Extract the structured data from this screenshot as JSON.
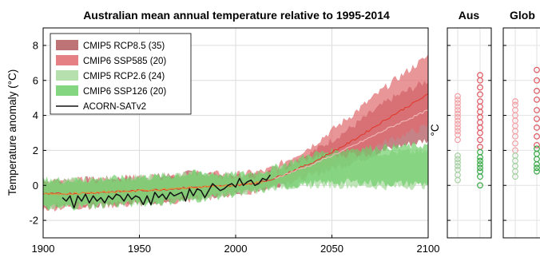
{
  "chart_data": [
    {
      "type": "area",
      "title": "Australian mean annual temperature relative to 1995-2014",
      "xlabel": "",
      "ylabel": "Temperature anomaly (°C)",
      "xlim": [
        1900,
        2100
      ],
      "ylim": [
        -3,
        9
      ],
      "xticks": [
        1900,
        1950,
        2000,
        2050,
        2100
      ],
      "yticks": [
        -2,
        0,
        2,
        4,
        6,
        8
      ],
      "grid": true,
      "legend_position": "top-left",
      "series": [
        {
          "name": "CMIP5 RCP8.5 (35)",
          "kind": "band",
          "color": "#b35a5f",
          "x": [
            1900,
            1920,
            1940,
            1960,
            1980,
            2000,
            2014,
            2020,
            2040,
            2060,
            2080,
            2100
          ],
          "lower": [
            -1.2,
            -1.1,
            -1.0,
            -0.9,
            -0.7,
            -0.4,
            -0.2,
            0.0,
            0.6,
            1.3,
            2.1,
            2.6
          ],
          "upper": [
            0.2,
            0.3,
            0.4,
            0.5,
            0.7,
            0.5,
            0.6,
            0.8,
            1.9,
            3.3,
            4.9,
            6.0
          ]
        },
        {
          "name": "CMIP6 SSP585 (20)",
          "kind": "band",
          "color": "#e06a6e",
          "x": [
            1900,
            1920,
            1940,
            1960,
            1980,
            2000,
            2014,
            2020,
            2040,
            2060,
            2080,
            2100
          ],
          "lower": [
            -1.3,
            -1.2,
            -1.1,
            -1.0,
            -0.8,
            -0.5,
            -0.2,
            0.0,
            0.7,
            1.6,
            2.6,
            3.4
          ],
          "upper": [
            0.3,
            0.3,
            0.4,
            0.5,
            0.7,
            0.6,
            0.8,
            1.0,
            2.3,
            4.0,
            5.8,
            7.4
          ]
        },
        {
          "name": "CMIP5 RCP2.6 (24)",
          "kind": "band",
          "color": "#a9dba0",
          "x": [
            1900,
            1920,
            1940,
            1960,
            1980,
            2000,
            2014,
            2020,
            2040,
            2060,
            2080,
            2100
          ],
          "lower": [
            -1.2,
            -1.1,
            -1.0,
            -0.9,
            -0.7,
            -0.4,
            -0.2,
            -0.1,
            0.0,
            0.0,
            -0.1,
            0.0
          ],
          "upper": [
            0.2,
            0.3,
            0.4,
            0.5,
            0.7,
            0.5,
            0.6,
            0.8,
            1.6,
            1.8,
            1.9,
            1.9
          ]
        },
        {
          "name": "CMIP6 SSP126 (20)",
          "kind": "band",
          "color": "#6fcf6b",
          "x": [
            1900,
            1920,
            1940,
            1960,
            1980,
            2000,
            2014,
            2020,
            2040,
            2060,
            2080,
            2100
          ],
          "lower": [
            -1.3,
            -1.2,
            -1.1,
            -1.0,
            -0.8,
            -0.5,
            -0.3,
            -0.1,
            0.1,
            0.2,
            0.1,
            0.1
          ],
          "upper": [
            0.3,
            0.3,
            0.4,
            0.5,
            0.7,
            0.6,
            0.8,
            1.0,
            1.8,
            2.1,
            2.2,
            2.3
          ]
        },
        {
          "name": "",
          "kind": "line",
          "color": "#e23a2e",
          "x": [
            1900,
            1920,
            1940,
            1960,
            1980,
            2000,
            2014,
            2020,
            2040,
            2060,
            2080,
            2100
          ],
          "values": [
            -0.5,
            -0.45,
            -0.35,
            -0.25,
            -0.1,
            0.0,
            0.2,
            0.4,
            1.3,
            2.5,
            3.9,
            5.2
          ]
        },
        {
          "name": "",
          "kind": "line",
          "color": "#f0b8b8",
          "x": [
            2020,
            2040,
            2060,
            2080,
            2100
          ],
          "values": [
            0.4,
            1.2,
            2.2,
            3.3,
            4.3
          ]
        },
        {
          "name": "",
          "kind": "line",
          "color": "#d99a3a",
          "x": [
            1900,
            1920,
            1940,
            1960,
            1980,
            2000,
            2014
          ],
          "values": [
            -0.5,
            -0.45,
            -0.35,
            -0.25,
            -0.1,
            0.0,
            0.2
          ]
        },
        {
          "name": "ACORN-SATv2",
          "kind": "line",
          "color": "#111111",
          "x": [
            1910,
            1912,
            1914,
            1916,
            1918,
            1920,
            1922,
            1924,
            1926,
            1928,
            1930,
            1932,
            1934,
            1936,
            1938,
            1940,
            1942,
            1944,
            1946,
            1948,
            1950,
            1952,
            1954,
            1956,
            1958,
            1960,
            1962,
            1964,
            1966,
            1968,
            1970,
            1972,
            1974,
            1976,
            1978,
            1980,
            1982,
            1984,
            1986,
            1988,
            1990,
            1992,
            1994,
            1996,
            1998,
            2000,
            2002,
            2004,
            2006,
            2008,
            2010,
            2012,
            2014,
            2016,
            2018
          ],
          "values": [
            -0.7,
            -0.9,
            -0.6,
            -1.3,
            -0.6,
            -0.9,
            -0.5,
            -1.0,
            -0.6,
            -0.9,
            -0.7,
            -1.0,
            -0.6,
            -0.8,
            -0.5,
            -0.6,
            -0.9,
            -0.5,
            -0.8,
            -0.6,
            -0.7,
            -1.1,
            -0.6,
            -1.1,
            -0.4,
            -0.7,
            -0.5,
            -0.8,
            -0.4,
            -0.6,
            -0.5,
            -0.4,
            -0.9,
            -0.2,
            -0.6,
            -0.2,
            -0.3,
            -0.7,
            -0.3,
            0.1,
            -0.1,
            -0.3,
            -0.2,
            0.0,
            0.1,
            -0.1,
            0.4,
            0.0,
            0.2,
            0.3,
            0.0,
            0.1,
            0.4,
            0.3,
            0.6
          ]
        }
      ]
    },
    {
      "type": "scatter",
      "title": "Aus",
      "ylabel": "°C",
      "ylim": [
        -3,
        9
      ],
      "series": [
        {
          "name": "CMIP5 RCP8.5",
          "color": "#f1a0a5",
          "values": [
            2.6,
            2.9,
            3.1,
            3.3,
            3.5,
            3.7,
            3.9,
            4.1,
            4.3,
            4.5,
            4.7,
            4.9,
            5.1
          ]
        },
        {
          "name": "CMIP6 SSP585",
          "color": "#e05560",
          "values": [
            2.2,
            2.6,
            3.0,
            3.3,
            3.6,
            3.9,
            4.2,
            4.5,
            4.8,
            5.2,
            5.6,
            6.0,
            6.3
          ]
        },
        {
          "name": "CMIP5 RCP2.6",
          "color": "#a4cfa0",
          "values": [
            0.3,
            0.6,
            0.9,
            1.1,
            1.3,
            1.5,
            1.7
          ]
        },
        {
          "name": "CMIP6 SSP126",
          "color": "#35a843",
          "values": [
            0.0,
            0.5,
            0.8,
            1.0,
            1.2,
            1.4,
            1.6,
            1.9
          ]
        }
      ]
    },
    {
      "type": "scatter",
      "title": "Glob",
      "ylabel": "",
      "ylim": [
        -3,
        9
      ],
      "series": [
        {
          "name": "CMIP5 RCP8.5",
          "color": "#f1a0a5",
          "values": [
            2.0,
            2.4,
            2.8,
            3.1,
            3.4,
            3.7,
            4.0,
            4.3,
            4.6,
            4.8
          ]
        },
        {
          "name": "CMIP6 SSP585",
          "color": "#e05560",
          "values": [
            2.3,
            2.8,
            3.3,
            3.8,
            4.3,
            4.9,
            5.4,
            6.0,
            6.6
          ]
        },
        {
          "name": "CMIP5 RCP2.6",
          "color": "#a4cfa0",
          "values": [
            0.5,
            0.8,
            1.1,
            1.4,
            1.7
          ]
        },
        {
          "name": "CMIP6 SSP126",
          "color": "#35a843",
          "values": [
            0.8,
            1.0,
            1.2,
            1.5,
            1.8,
            2.1
          ]
        }
      ]
    }
  ]
}
